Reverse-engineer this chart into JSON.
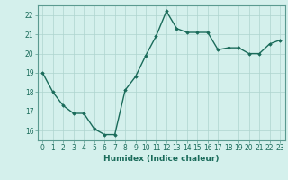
{
  "x": [
    0,
    1,
    2,
    3,
    4,
    5,
    6,
    7,
    8,
    9,
    10,
    11,
    12,
    13,
    14,
    15,
    16,
    17,
    18,
    19,
    20,
    21,
    22,
    23
  ],
  "y": [
    19.0,
    18.0,
    17.3,
    16.9,
    16.9,
    16.1,
    15.8,
    15.8,
    18.1,
    18.8,
    19.9,
    20.9,
    22.2,
    21.3,
    21.1,
    21.1,
    21.1,
    20.2,
    20.3,
    20.3,
    20.0,
    20.0,
    20.5,
    20.7
  ],
  "xlabel": "Humidex (Indice chaleur)",
  "line_color": "#1a6b5a",
  "marker": "D",
  "marker_size": 1.8,
  "bg_color": "#d4f0ec",
  "grid_color": "#aed4ce",
  "tick_color": "#1a6b5a",
  "label_color": "#1a6b5a",
  "spine_color": "#5a9a90",
  "ylim": [
    15.5,
    22.5
  ],
  "xlim": [
    -0.5,
    23.5
  ],
  "yticks": [
    16,
    17,
    18,
    19,
    20,
    21,
    22
  ],
  "xticks": [
    0,
    1,
    2,
    3,
    4,
    5,
    6,
    7,
    8,
    9,
    10,
    11,
    12,
    13,
    14,
    15,
    16,
    17,
    18,
    19,
    20,
    21,
    22,
    23
  ],
  "linewidth": 1.0,
  "tick_fontsize": 5.5,
  "xlabel_fontsize": 6.5
}
